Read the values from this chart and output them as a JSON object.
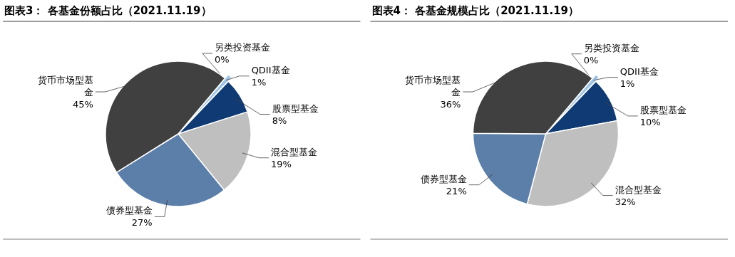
{
  "chart_data": [
    {
      "type": "pie",
      "title": "图表3：  各基金份额占比（2021.11.19）",
      "categories": [
        "另类投资基金",
        "QDII基金",
        "股票型基金",
        "混合型基金",
        "债券型基金",
        "货币市场型基金"
      ],
      "values": [
        0,
        1,
        8,
        19,
        27,
        45
      ],
      "colors": [
        "#dce9f4",
        "#9dc3e6",
        "#0f3a73",
        "#bfbfbf",
        "#5b7fa8",
        "#404040"
      ],
      "value_labels": [
        "0%",
        "1%",
        "8%",
        "19%",
        "27%",
        "45%"
      ]
    },
    {
      "type": "pie",
      "title": "图表4：  各基金规模占比（2021.11.19）",
      "categories": [
        "另类投资基金",
        "QDII基金",
        "股票型基金",
        "混合型基金",
        "债券型基金",
        "货币市场型基金"
      ],
      "values": [
        0,
        1,
        10,
        32,
        21,
        36
      ],
      "colors": [
        "#dce9f4",
        "#9dc3e6",
        "#0f3a73",
        "#bfbfbf",
        "#5b7fa8",
        "#404040"
      ],
      "value_labels": [
        "0%",
        "1%",
        "10%",
        "32%",
        "21%",
        "36%"
      ]
    }
  ]
}
